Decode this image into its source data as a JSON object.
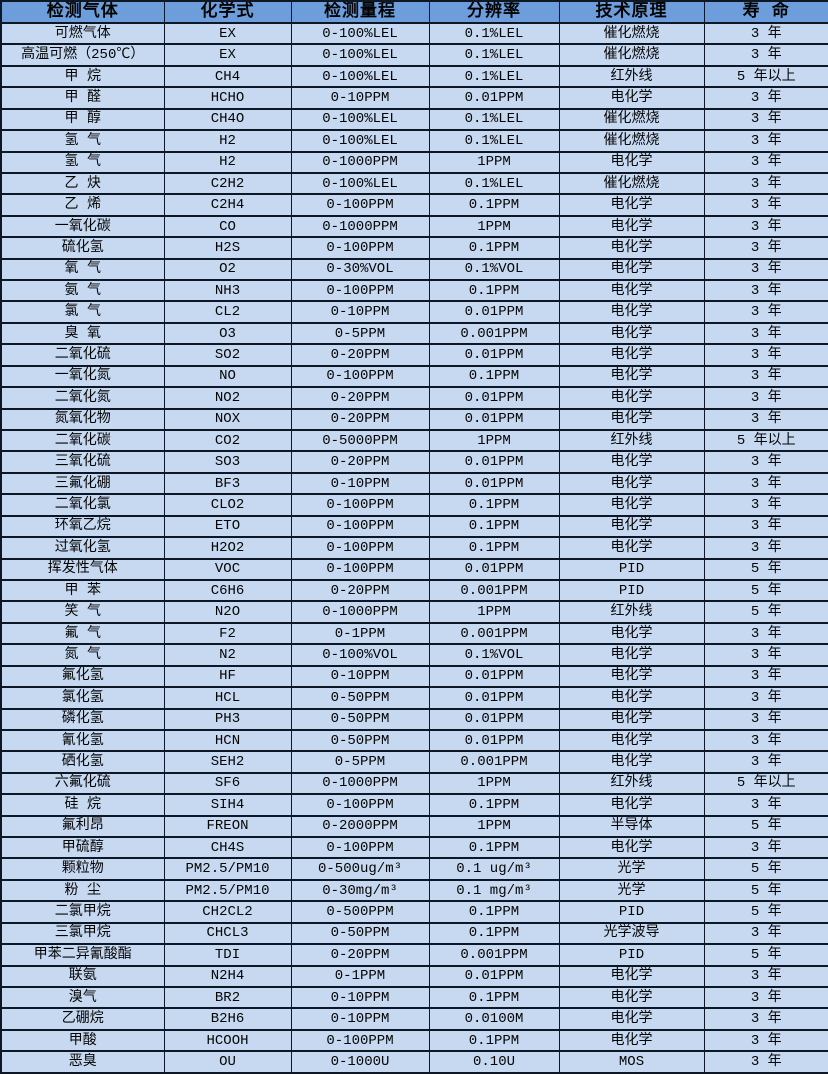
{
  "colors": {
    "header_bg": "#6d9edb",
    "row_bg": "#c6d9f1",
    "border": "#0d1726",
    "text": "#050505"
  },
  "table": {
    "columns": [
      "检测气体",
      "化学式",
      "检测量程",
      "分辨率",
      "技术原理",
      "寿 命"
    ],
    "rows": [
      [
        "可燃气体",
        "EX",
        "0-100%LEL",
        "0.1%LEL",
        "催化燃烧",
        "3 年"
      ],
      [
        "高温可燃（250℃）",
        "EX",
        "0-100%LEL",
        "0.1%LEL",
        "催化燃烧",
        "3 年"
      ],
      [
        "甲 烷",
        "CH4",
        "0-100%LEL",
        "0.1%LEL",
        "红外线",
        "5 年以上"
      ],
      [
        "甲 醛",
        "HCHO",
        "0-10PPM",
        "0.01PPM",
        "电化学",
        "3 年"
      ],
      [
        "甲 醇",
        "CH4O",
        "0-100%LEL",
        "0.1%LEL",
        "催化燃烧",
        "3 年"
      ],
      [
        "氢 气",
        "H2",
        "0-100%LEL",
        "0.1%LEL",
        "催化燃烧",
        "3 年"
      ],
      [
        "氢 气",
        "H2",
        "0-1000PPM",
        "1PPM",
        "电化学",
        "3 年"
      ],
      [
        "乙 炔",
        "C2H2",
        "0-100%LEL",
        "0.1%LEL",
        "催化燃烧",
        "3 年"
      ],
      [
        "乙 烯",
        "C2H4",
        "0-100PPM",
        "0.1PPM",
        "电化学",
        "3 年"
      ],
      [
        "一氧化碳",
        "CO",
        "0-1000PPM",
        "1PPM",
        "电化学",
        "3 年"
      ],
      [
        "硫化氢",
        "H2S",
        "0-100PPM",
        "0.1PPM",
        "电化学",
        "3 年"
      ],
      [
        "氧 气",
        "O2",
        "0-30%VOL",
        "0.1%VOL",
        "电化学",
        "3 年"
      ],
      [
        "氨 气",
        "NH3",
        "0-100PPM",
        "0.1PPM",
        "电化学",
        "3 年"
      ],
      [
        "氯 气",
        "CL2",
        "0-10PPM",
        "0.01PPM",
        "电化学",
        "3 年"
      ],
      [
        "臭 氧",
        "O3",
        "0-5PPM",
        "0.001PPM",
        "电化学",
        "3 年"
      ],
      [
        "二氧化硫",
        "SO2",
        "0-20PPM",
        "0.01PPM",
        "电化学",
        "3 年"
      ],
      [
        "一氧化氮",
        "NO",
        "0-100PPM",
        "0.1PPM",
        "电化学",
        "3 年"
      ],
      [
        "二氧化氮",
        "NO2",
        "0-20PPM",
        "0.01PPM",
        "电化学",
        "3 年"
      ],
      [
        "氮氧化物",
        "NOX",
        "0-20PPM",
        "0.01PPM",
        "电化学",
        "3 年"
      ],
      [
        "二氧化碳",
        "CO2",
        "0-5000PPM",
        "1PPM",
        "红外线",
        "5 年以上"
      ],
      [
        "三氧化硫",
        "SO3",
        "0-20PPM",
        "0.01PPM",
        "电化学",
        "3 年"
      ],
      [
        "三氟化硼",
        "BF3",
        "0-10PPM",
        "0.01PPM",
        "电化学",
        "3 年"
      ],
      [
        "二氧化氯",
        "CLO2",
        "0-100PPM",
        "0.1PPM",
        "电化学",
        "3 年"
      ],
      [
        "环氧乙烷",
        "ETO",
        "0-100PPM",
        "0.1PPM",
        "电化学",
        "3 年"
      ],
      [
        "过氧化氢",
        "H2O2",
        "0-100PPM",
        "0.1PPM",
        "电化学",
        "3 年"
      ],
      [
        "挥发性气体",
        "VOC",
        "0-100PPM",
        "0.01PPM",
        "PID",
        "5 年"
      ],
      [
        "甲 苯",
        "C6H6",
        "0-20PPM",
        "0.001PPM",
        "PID",
        "5 年"
      ],
      [
        "笑 气",
        "N2O",
        "0-1000PPM",
        "1PPM",
        "红外线",
        "5 年"
      ],
      [
        "氟 气",
        "F2",
        "0-1PPM",
        "0.001PPM",
        "电化学",
        "3 年"
      ],
      [
        "氮 气",
        "N2",
        "0-100%VOL",
        "0.1%VOL",
        "电化学",
        "3 年"
      ],
      [
        "氟化氢",
        "HF",
        "0-10PPM",
        "0.01PPM",
        "电化学",
        "3 年"
      ],
      [
        "氯化氢",
        "HCL",
        "0-50PPM",
        "0.01PPM",
        "电化学",
        "3 年"
      ],
      [
        "磷化氢",
        "PH3",
        "0-50PPM",
        "0.01PPM",
        "电化学",
        "3 年"
      ],
      [
        "氰化氢",
        "HCN",
        "0-50PPM",
        "0.01PPM",
        "电化学",
        "3 年"
      ],
      [
        "硒化氢",
        "SEH2",
        "0-5PPM",
        "0.001PPM",
        "电化学",
        "3 年"
      ],
      [
        "六氟化硫",
        "SF6",
        "0-1000PPM",
        "1PPM",
        "红外线",
        "5 年以上"
      ],
      [
        "硅 烷",
        "SIH4",
        "0-100PPM",
        "0.1PPM",
        "电化学",
        "3 年"
      ],
      [
        "氟利昂",
        "FREON",
        "0-2000PPM",
        "1PPM",
        "半导体",
        "5 年"
      ],
      [
        "甲硫醇",
        "CH4S",
        "0-100PPM",
        "0.1PPM",
        "电化学",
        "3 年"
      ],
      [
        "颗粒物",
        "PM2.5/PM10",
        "0-500ug/m³",
        "0.1 ug/m³",
        "光学",
        "5 年"
      ],
      [
        "粉 尘",
        "PM2.5/PM10",
        "0-30mg/m³",
        "0.1 mg/m³",
        "光学",
        "5 年"
      ],
      [
        "二氯甲烷",
        "CH2CL2",
        "0-500PPM",
        "0.1PPM",
        "PID",
        "5 年"
      ],
      [
        "三氯甲烷",
        "CHCL3",
        "0-50PPM",
        "0.1PPM",
        "光学波导",
        "3 年"
      ],
      [
        "甲苯二异氰酸酯",
        "TDI",
        "0-20PPM",
        "0.001PPM",
        "PID",
        "5 年"
      ],
      [
        "联氨",
        "N2H4",
        "0-1PPM",
        "0.01PPM",
        "电化学",
        "3 年"
      ],
      [
        "溴气",
        "BR2",
        "0-10PPM",
        "0.1PPM",
        "电化学",
        "3 年"
      ],
      [
        "乙硼烷",
        "B2H6",
        "0-10PPM",
        "0.0100M",
        "电化学",
        "3 年"
      ],
      [
        "甲酸",
        "HCOOH",
        "0-100PPM",
        "0.1PPM",
        "电化学",
        "3 年"
      ],
      [
        "恶臭",
        "OU",
        "0-1000U",
        "0.10U",
        "MOS",
        "3 年"
      ]
    ]
  }
}
